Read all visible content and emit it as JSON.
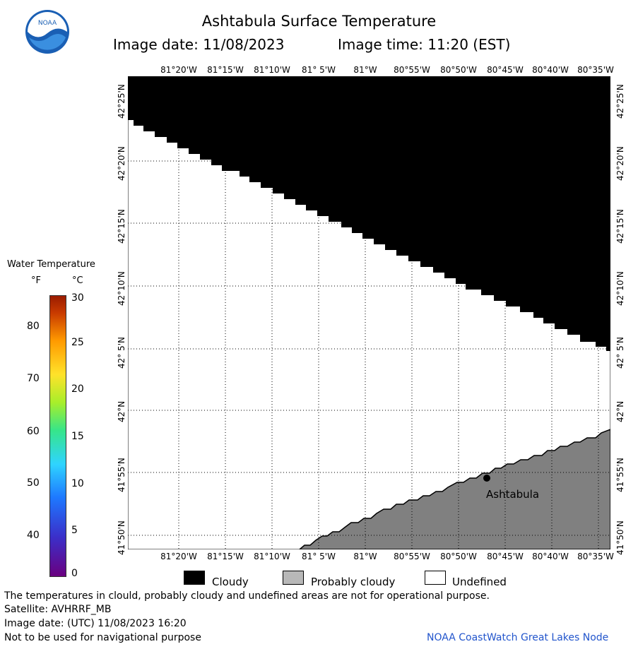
{
  "header": {
    "title": "Ashtabula Surface Temperature",
    "image_date_text": "Image date: 11/08/2023",
    "image_time_text": "Image time: 11:20 (EST)"
  },
  "logo": {
    "text": "NOAA",
    "icon": "noaa-logo"
  },
  "legend": {
    "title": "Water Temperature",
    "unit_f": "°F",
    "unit_c": "°C",
    "f_ticks": [
      "80",
      "70",
      "60",
      "50",
      "40"
    ],
    "c_ticks": [
      "30",
      "25",
      "20",
      "15",
      "10",
      "5",
      "0"
    ]
  },
  "map": {
    "lon_labels": [
      "81°20'W",
      "81°15'W",
      "81°10'W",
      "81° 5'W",
      "81°W",
      "80°55'W",
      "80°50'W",
      "80°45'W",
      "80°40'W",
      "80°35'W"
    ],
    "lat_labels": [
      "42°25'N",
      "42°20'N",
      "42°15'N",
      "42°10'N",
      "42° 5'N",
      "42°N",
      "41°55'N",
      "41°50'N"
    ],
    "city_label": "Ashtabula",
    "colors": {
      "cloudy": "#000000",
      "probably_cloudy": "#808080",
      "undefined": "#ffffff"
    }
  },
  "key": {
    "cloudy": "Cloudy",
    "probably_cloudy": "Probably cloudy",
    "undefined": "Undefined"
  },
  "footer": {
    "line1": "The temperatures in clould, probably cloudy and undefined areas are not for operational purpose.",
    "line2": "Satellite: AVHRRF_MB",
    "line3": "Image date: (UTC) 11/08/2023  16:20",
    "line4": "Not to be used for navigational purpose",
    "credit": "NOAA CoastWatch Great Lakes Node"
  }
}
